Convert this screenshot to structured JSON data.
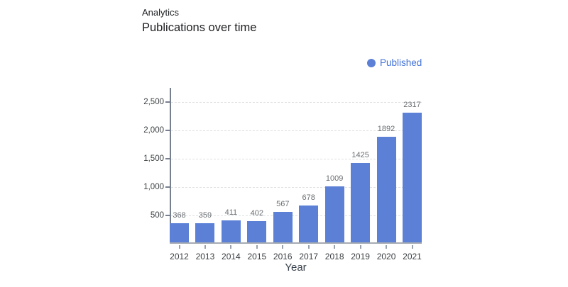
{
  "header": {
    "subtitle": "Analytics",
    "title": "Publications over time"
  },
  "legend": {
    "label": "Published",
    "marker_color": "#5b80d6",
    "text_color": "#4272d8"
  },
  "chart_data": {
    "type": "bar",
    "title": "Publications over time",
    "xlabel": "Year",
    "ylabel": "",
    "categories": [
      "2012",
      "2013",
      "2014",
      "2015",
      "2016",
      "2017",
      "2018",
      "2019",
      "2020",
      "2021"
    ],
    "series": [
      {
        "name": "Published",
        "values": [
          368,
          359,
          411,
          402,
          567,
          678,
          1009,
          1425,
          1892,
          2317
        ]
      }
    ],
    "value_labels": [
      "368",
      "359",
      "411",
      "402",
      "567",
      "678",
      "1009",
      "1425",
      "1892",
      "2317"
    ],
    "y_ticks": [
      {
        "value": 500,
        "label": "500"
      },
      {
        "value": 1000,
        "label": "1,000"
      },
      {
        "value": 1500,
        "label": "1,500"
      },
      {
        "value": 2000,
        "label": "2,000"
      },
      {
        "value": 2500,
        "label": "2,500"
      }
    ],
    "ylim": [
      0,
      2750
    ],
    "grid": "horizontal-dashed",
    "legend_position": "top-right",
    "bar_color": "#5b80d6"
  }
}
